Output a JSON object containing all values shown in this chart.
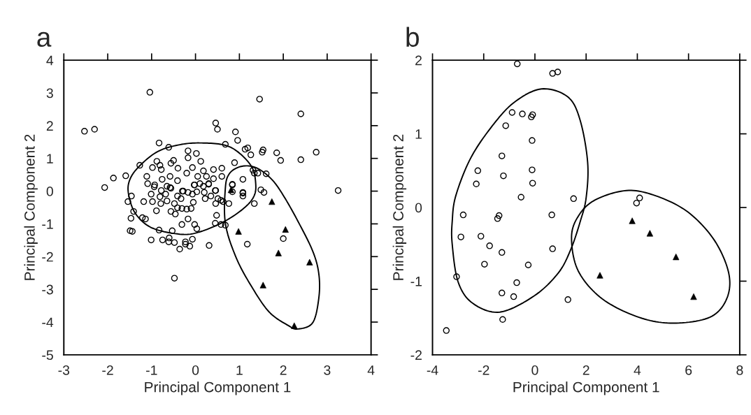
{
  "chart_data": [
    {
      "type": "scatter",
      "title": "a",
      "xlabel": "Principal Component 1",
      "ylabel": "Principal Component 2",
      "xlim": [
        -3,
        4
      ],
      "ylim": [
        -5,
        4
      ],
      "xticks": [
        -3,
        -2,
        -1,
        0,
        1,
        2,
        3,
        4
      ],
      "yticks": [
        -5,
        -4,
        -3,
        -2,
        -1,
        0,
        1,
        2,
        3,
        4
      ],
      "series": [
        {
          "type": "scatter",
          "marker": "circle",
          "color": "#000000",
          "x": [
            -1.04,
            -2.53,
            -2.3,
            0.46,
            0.5,
            -0.83,
            -0.61,
            0.68,
            -1.27,
            -1.87,
            -1.59,
            -2.07,
            -0.17,
            -0.17,
            0.02,
            0.12,
            -0.88,
            -0.5,
            -0.56,
            -0.98,
            -0.81,
            -0.78,
            -0.4,
            -0.2,
            -0.07,
            0.18,
            0.41,
            0.6,
            0.6,
            0.41,
            0.25,
            0.05,
            -0.41,
            -0.58,
            -0.76,
            -1.11,
            -1.09,
            -0.93,
            -0.58,
            -0.28,
            -0.02,
            0.18,
            0.3,
            0.46,
            1.46,
            2.4,
            0.91,
            0.96,
            1.13,
            1.19,
            1.26,
            1.54,
            1.52,
            1.85,
            1.94,
            2.4,
            2.75,
            0.89,
            1.31,
            1.42,
            1.61,
            1.34,
            1.08,
            0.84,
            1.49,
            1.56,
            1.08,
            3.25,
            1.34,
            1.18,
            2.0,
            0.68,
            0.58,
            0.45,
            0.48,
            0.31,
            -0.48,
            0.76,
            0.63,
            1.08,
            1.08,
            0.84,
            0.84,
            -1.46,
            -1.54,
            -1.18,
            -1.41,
            -1.47,
            -1.21,
            -1.14,
            -1.49,
            -1.44,
            -1.01,
            -0.75,
            -0.6,
            -0.61,
            -0.48,
            -0.36,
            -0.23,
            -0.23,
            -0.13,
            -0.07,
            -0.83,
            -0.53,
            -0.31,
            -0.17,
            -0.02,
            0.03,
            -0.46,
            -0.56,
            -0.89,
            -0.98,
            -0.79,
            -0.81,
            -0.65,
            -0.48,
            -0.41,
            -0.33,
            -0.31,
            -0.2,
            -0.1,
            -0.05,
            -1.01,
            -0.68,
            -0.41,
            -0.3,
            -0.17,
            -0.07,
            0.03,
            0.2,
            0.22,
            0.35,
            0.46,
            0.51,
            0.58,
            0.45,
            0.3,
            0.1,
            -0.03,
            -0.65,
            -0.56,
            -0.94,
            -0.78
          ],
          "values": [
            3.02,
            1.83,
            1.89,
            2.08,
            1.89,
            1.47,
            1.34,
            1.43,
            0.79,
            0.4,
            0.47,
            0.11,
            1.23,
            1.02,
            1.15,
            0.91,
            0.91,
            0.94,
            0.85,
            0.72,
            0.79,
            0.66,
            0.7,
            0.55,
            0.72,
            0.62,
            0.66,
            0.7,
            0.45,
            0.38,
            0.45,
            0.45,
            0.32,
            0.45,
            0.36,
            0.45,
            0.23,
            0.19,
            0.11,
            0.0,
            0.19,
            0.15,
            0.23,
            0.02,
            2.81,
            2.36,
            1.81,
            1.55,
            1.28,
            1.32,
            1.11,
            1.26,
            1.19,
            1.17,
            0.94,
            0.96,
            1.19,
            0.87,
            0.64,
            0.55,
            0.53,
            0.55,
            0.36,
            0.21,
            0.04,
            -0.04,
            -0.04,
            0.02,
            -0.38,
            -1.62,
            -1.45,
            -1.04,
            -1.02,
            -0.98,
            -0.74,
            -1.66,
            -2.66,
            -0.38,
            -0.32,
            -0.06,
            -0.15,
            0.19,
            -0.02,
            -0.15,
            -0.32,
            -0.32,
            -0.62,
            -0.83,
            -0.81,
            -0.85,
            -1.21,
            -1.23,
            -1.49,
            -1.49,
            -1.43,
            -1.55,
            -1.57,
            -1.77,
            -1.55,
            -1.62,
            -1.68,
            -1.47,
            -1.19,
            -1.21,
            -1.02,
            -0.85,
            -1.02,
            -1.15,
            -0.7,
            -0.62,
            -0.6,
            -0.32,
            -0.38,
            -0.17,
            -0.3,
            -0.38,
            -0.51,
            -0.23,
            -0.53,
            -0.55,
            -0.53,
            -0.34,
            -0.09,
            -0.09,
            -0.15,
            0.0,
            -0.04,
            -0.09,
            -0.02,
            -0.04,
            -0.23,
            -0.15,
            -0.38,
            -0.23,
            -0.28,
            0.02,
            0.21,
            0.23,
            0.19,
            0.15,
            0.09,
            0.13,
            0.02
          ]
        },
        {
          "type": "scatter",
          "marker": "triangle",
          "color": "#000000",
          "x": [
            0.81,
            1.74,
            0.98,
            2.05,
            1.89,
            2.6,
            1.54,
            2.25
          ],
          "values": [
            0.04,
            -0.32,
            -1.23,
            -1.17,
            -1.89,
            -2.17,
            -2.87,
            -4.11
          ]
        }
      ]
    },
    {
      "type": "scatter",
      "title": "b",
      "xlabel": "Principal Component 1",
      "ylabel": "Principal Component 2",
      "xlim": [
        -4,
        8
      ],
      "ylim": [
        -2,
        2
      ],
      "xticks": [
        -4,
        -2,
        0,
        2,
        4,
        6,
        8
      ],
      "yticks": [
        -2,
        -1,
        0,
        1,
        2
      ],
      "series": [
        {
          "type": "scatter",
          "marker": "circle",
          "color": "#000000",
          "x": [
            -0.69,
            0.69,
            0.89,
            -0.89,
            -0.49,
            -0.09,
            -0.14,
            -1.14,
            -0.11,
            -1.29,
            -2.23,
            -0.11,
            -2.29,
            -1.23,
            -0.09,
            -0.54,
            1.51,
            -2.8,
            -1.4,
            -1.46,
            0.66,
            -2.89,
            -2.11,
            -1.77,
            -1.29,
            0.69,
            -1.97,
            -0.26,
            -3.06,
            -0.71,
            -1.29,
            -0.83,
            1.29,
            -1.26,
            -3.46,
            4.09,
            3.97
          ],
          "values": [
            1.95,
            1.82,
            1.84,
            1.29,
            1.27,
            1.26,
            1.23,
            1.11,
            0.91,
            0.7,
            0.5,
            0.51,
            0.32,
            0.43,
            0.33,
            0.14,
            0.12,
            -0.1,
            -0.11,
            -0.15,
            -0.1,
            -0.4,
            -0.39,
            -0.52,
            -0.61,
            -0.56,
            -0.77,
            -0.78,
            -0.94,
            -1.02,
            -1.16,
            -1.21,
            -1.25,
            -1.52,
            -1.67,
            0.13,
            0.06
          ]
        },
        {
          "type": "scatter",
          "marker": "triangle",
          "color": "#000000",
          "x": [
            3.8,
            4.49,
            5.51,
            2.54,
            6.2
          ],
          "values": [
            -0.18,
            -0.35,
            -0.67,
            -0.92,
            -1.21
          ]
        }
      ]
    }
  ]
}
